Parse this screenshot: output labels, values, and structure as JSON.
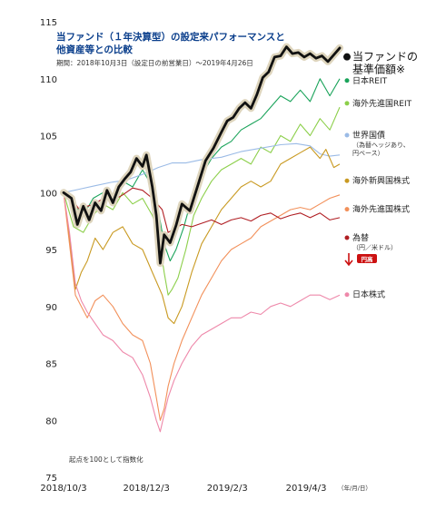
{
  "chart_data": {
    "type": "line",
    "title_lines": [
      "当ファンド（１年決算型）の設定来パフォーマンスと",
      "他資産等との比較"
    ],
    "subtitle": "期間：2018年10月3日（設定日の前営業日）～2019年4月26日",
    "note": "起点を100として指数化",
    "x_unit": "（年/月/日）",
    "x_range": [
      0,
      140
    ],
    "ylim": [
      75,
      115
    ],
    "yticks": [
      75,
      80,
      85,
      90,
      95,
      100,
      105,
      110,
      115
    ],
    "xticks": [
      {
        "x": 0,
        "label": "2018/10/3"
      },
      {
        "x": 42,
        "label": "2018/12/3"
      },
      {
        "x": 83,
        "label": "2019/2/3"
      },
      {
        "x": 123,
        "label": "2019/4/3"
      }
    ],
    "series": [
      {
        "key": "reit_global",
        "legend": "海外先進国REIT",
        "color": "#8ccf4a",
        "points": [
          [
            0,
            100
          ],
          [
            5,
            97
          ],
          [
            10,
            96.5
          ],
          [
            15,
            98
          ],
          [
            20,
            99
          ],
          [
            25,
            98.5
          ],
          [
            30,
            100
          ],
          [
            35,
            99
          ],
          [
            40,
            99.5
          ],
          [
            45,
            98
          ],
          [
            48,
            96.5
          ],
          [
            51,
            93
          ],
          [
            53,
            91
          ],
          [
            55,
            91.5
          ],
          [
            58,
            92.5
          ],
          [
            62,
            95
          ],
          [
            66,
            98
          ],
          [
            70,
            99.5
          ],
          [
            75,
            101
          ],
          [
            80,
            102
          ],
          [
            85,
            102.5
          ],
          [
            90,
            103
          ],
          [
            95,
            102.5
          ],
          [
            100,
            104
          ],
          [
            105,
            103.5
          ],
          [
            110,
            105
          ],
          [
            115,
            104.5
          ],
          [
            120,
            106
          ],
          [
            125,
            105
          ],
          [
            130,
            106.5
          ],
          [
            135,
            105.5
          ],
          [
            140,
            107.5
          ]
        ]
      },
      {
        "key": "reit_japan",
        "legend": "日本REIT",
        "color": "#1aa35a",
        "points": [
          [
            0,
            100
          ],
          [
            5,
            99
          ],
          [
            10,
            98
          ],
          [
            15,
            99.5
          ],
          [
            20,
            100
          ],
          [
            25,
            99.5
          ],
          [
            30,
            101
          ],
          [
            35,
            100.5
          ],
          [
            40,
            102
          ],
          [
            45,
            100.5
          ],
          [
            48,
            98.5
          ],
          [
            51,
            95.5
          ],
          [
            54,
            94
          ],
          [
            57,
            95
          ],
          [
            61,
            97
          ],
          [
            65,
            99.5
          ],
          [
            70,
            101.5
          ],
          [
            75,
            103
          ],
          [
            80,
            104
          ],
          [
            85,
            104.5
          ],
          [
            90,
            105.5
          ],
          [
            95,
            106
          ],
          [
            100,
            106.5
          ],
          [
            105,
            107.5
          ],
          [
            110,
            108.5
          ],
          [
            115,
            108
          ],
          [
            120,
            109
          ],
          [
            125,
            108
          ],
          [
            130,
            110
          ],
          [
            135,
            108.5
          ],
          [
            140,
            110
          ]
        ]
      },
      {
        "key": "bond_global",
        "legend": "世界国債",
        "legend_sub": [
          "（為替ヘッジあり、",
          "円ベース）"
        ],
        "color": "#9bbbe6",
        "points": [
          [
            0,
            100
          ],
          [
            8,
            100.3
          ],
          [
            16,
            100.6
          ],
          [
            24,
            100.9
          ],
          [
            32,
            101.1
          ],
          [
            40,
            101.6
          ],
          [
            48,
            102.2
          ],
          [
            55,
            102.6
          ],
          [
            62,
            102.6
          ],
          [
            70,
            102.9
          ],
          [
            80,
            103.1
          ],
          [
            90,
            103.6
          ],
          [
            100,
            103.9
          ],
          [
            110,
            104.2
          ],
          [
            118,
            104.3
          ],
          [
            125,
            104.1
          ],
          [
            130,
            103.4
          ],
          [
            135,
            103.2
          ],
          [
            140,
            103.3
          ]
        ]
      },
      {
        "key": "equity_em",
        "legend": "海外新興国株式",
        "color": "#c99a22",
        "points": [
          [
            0,
            100
          ],
          [
            3,
            96
          ],
          [
            6,
            91.5
          ],
          [
            9,
            93
          ],
          [
            12,
            94
          ],
          [
            16,
            96
          ],
          [
            20,
            95
          ],
          [
            25,
            96.5
          ],
          [
            30,
            97
          ],
          [
            35,
            95.5
          ],
          [
            40,
            95
          ],
          [
            45,
            93
          ],
          [
            50,
            91
          ],
          [
            53,
            89
          ],
          [
            56,
            88.5
          ],
          [
            60,
            90
          ],
          [
            65,
            93
          ],
          [
            70,
            95.5
          ],
          [
            75,
            97
          ],
          [
            80,
            98.5
          ],
          [
            85,
            99.5
          ],
          [
            90,
            100.5
          ],
          [
            95,
            101
          ],
          [
            100,
            100.5
          ],
          [
            105,
            101
          ],
          [
            110,
            102.5
          ],
          [
            115,
            103
          ],
          [
            120,
            103.5
          ],
          [
            125,
            104
          ],
          [
            130,
            103
          ],
          [
            133,
            103.8
          ],
          [
            137,
            102.2
          ],
          [
            140,
            102.5
          ]
        ]
      },
      {
        "key": "equity_global",
        "legend": "海外先進国株式",
        "color": "#f2905a",
        "points": [
          [
            0,
            100
          ],
          [
            3,
            95.5
          ],
          [
            6,
            91
          ],
          [
            9,
            90
          ],
          [
            12,
            89
          ],
          [
            16,
            90.5
          ],
          [
            20,
            91
          ],
          [
            25,
            90
          ],
          [
            30,
            88.5
          ],
          [
            35,
            87.5
          ],
          [
            40,
            87
          ],
          [
            44,
            85
          ],
          [
            47,
            82
          ],
          [
            49,
            80
          ],
          [
            51,
            81
          ],
          [
            53,
            83
          ],
          [
            56,
            85
          ],
          [
            60,
            87
          ],
          [
            65,
            89
          ],
          [
            70,
            91
          ],
          [
            75,
            92.5
          ],
          [
            80,
            94
          ],
          [
            85,
            95
          ],
          [
            90,
            95.5
          ],
          [
            95,
            96
          ],
          [
            100,
            97
          ],
          [
            105,
            97.5
          ],
          [
            110,
            98
          ],
          [
            115,
            98.5
          ],
          [
            120,
            98.7
          ],
          [
            125,
            98.5
          ],
          [
            130,
            99
          ],
          [
            135,
            99.5
          ],
          [
            140,
            99.8
          ]
        ]
      },
      {
        "key": "fx_usdjpy",
        "legend": "為替",
        "legend_sub": [
          "（円／米ドル）"
        ],
        "color": "#b01e23",
        "points": [
          [
            0,
            100
          ],
          [
            4,
            99.5
          ],
          [
            8,
            98.5
          ],
          [
            12,
            98.8
          ],
          [
            16,
            99
          ],
          [
            20,
            99.5
          ],
          [
            25,
            99.3
          ],
          [
            30,
            99.8
          ],
          [
            35,
            100.4
          ],
          [
            40,
            100.2
          ],
          [
            45,
            99.5
          ],
          [
            50,
            98.5
          ],
          [
            53,
            96.5
          ],
          [
            56,
            96.8
          ],
          [
            60,
            97.2
          ],
          [
            65,
            97
          ],
          [
            70,
            97.3
          ],
          [
            75,
            97.6
          ],
          [
            80,
            97.2
          ],
          [
            85,
            97.6
          ],
          [
            90,
            97.8
          ],
          [
            95,
            97.5
          ],
          [
            100,
            98
          ],
          [
            105,
            98.2
          ],
          [
            110,
            97.7
          ],
          [
            115,
            98
          ],
          [
            120,
            98.2
          ],
          [
            125,
            97.8
          ],
          [
            130,
            98.2
          ],
          [
            135,
            97.6
          ],
          [
            140,
            97.8
          ]
        ]
      },
      {
        "key": "equity_japan",
        "legend": "日本株式",
        "color": "#ee88aa",
        "points": [
          [
            0,
            100
          ],
          [
            3,
            96.5
          ],
          [
            6,
            92
          ],
          [
            9,
            90.5
          ],
          [
            12,
            89.5
          ],
          [
            16,
            88.5
          ],
          [
            20,
            87.5
          ],
          [
            25,
            87
          ],
          [
            30,
            86
          ],
          [
            35,
            85.5
          ],
          [
            40,
            84
          ],
          [
            44,
            82
          ],
          [
            47,
            80
          ],
          [
            49,
            79
          ],
          [
            51,
            80.5
          ],
          [
            53,
            82
          ],
          [
            56,
            83.5
          ],
          [
            60,
            85
          ],
          [
            65,
            86.5
          ],
          [
            70,
            87.5
          ],
          [
            75,
            88
          ],
          [
            80,
            88.5
          ],
          [
            85,
            89
          ],
          [
            90,
            89
          ],
          [
            95,
            89.5
          ],
          [
            100,
            89.3
          ],
          [
            105,
            90
          ],
          [
            110,
            90.3
          ],
          [
            115,
            90
          ],
          [
            120,
            90.5
          ],
          [
            125,
            91
          ],
          [
            130,
            91
          ],
          [
            135,
            90.6
          ],
          [
            140,
            91
          ]
        ]
      },
      {
        "key": "fund",
        "legend": "当ファンドの",
        "legend_sub": [
          "基準価額※"
        ],
        "color": "#111111",
        "halo": "#ded5bd",
        "emphasis": true,
        "points": [
          [
            0,
            100
          ],
          [
            4,
            99.5
          ],
          [
            7,
            97.2
          ],
          [
            10,
            98.8
          ],
          [
            13,
            97.6
          ],
          [
            16,
            99.1
          ],
          [
            19,
            98.4
          ],
          [
            22,
            100.2
          ],
          [
            25,
            99.1
          ],
          [
            28,
            100.5
          ],
          [
            31,
            101.2
          ],
          [
            34,
            101.8
          ],
          [
            37,
            103
          ],
          [
            40,
            102.3
          ],
          [
            42,
            103.3
          ],
          [
            45,
            100.5
          ],
          [
            47,
            98
          ],
          [
            49,
            93.8
          ],
          [
            51,
            96.3
          ],
          [
            54,
            95.6
          ],
          [
            57,
            97.1
          ],
          [
            60,
            99
          ],
          [
            64,
            98.4
          ],
          [
            68,
            100.6
          ],
          [
            72,
            102.8
          ],
          [
            76,
            103.9
          ],
          [
            80,
            105.3
          ],
          [
            83,
            106.3
          ],
          [
            86,
            106.6
          ],
          [
            89,
            107.4
          ],
          [
            92,
            107.9
          ],
          [
            95,
            107.4
          ],
          [
            98,
            108.6
          ],
          [
            101,
            110.1
          ],
          [
            104,
            110.6
          ],
          [
            107,
            111.9
          ],
          [
            110,
            112
          ],
          [
            113,
            112.8
          ],
          [
            116,
            112.2
          ],
          [
            119,
            112.3
          ],
          [
            122,
            111.9
          ],
          [
            125,
            112.2
          ],
          [
            128,
            111.8
          ],
          [
            131,
            112
          ],
          [
            134,
            111.5
          ],
          [
            137,
            112.1
          ],
          [
            140,
            112.7
          ]
        ]
      }
    ],
    "legend_entries": [
      {
        "key": "fund",
        "text": "当ファンドの",
        "sub": [
          "基準価額※"
        ],
        "color": "#111111",
        "ylab": 111.6
      },
      {
        "key": "reit_japan",
        "text": "日本REIT",
        "color": "#1aa35a",
        "ylab": 109.6
      },
      {
        "key": "reit_global",
        "text": "海外先進国REIT",
        "color": "#8ccf4a",
        "ylab": 107.6
      },
      {
        "key": "bond_global",
        "text": "世界国債",
        "sub": [
          "（為替ヘッジあり、",
          "円ベース）"
        ],
        "color": "#9bbbe6",
        "ylab": 104.8
      },
      {
        "key": "equity_em",
        "text": "海外新興国株式",
        "color": "#c99a22",
        "ylab": 100.8
      },
      {
        "key": "equity_global",
        "text": "海外先進国株式",
        "color": "#f2905a",
        "ylab": 98.3
      },
      {
        "key": "fx_usdjpy",
        "text": "為替",
        "sub": [
          "（円／米ドル）"
        ],
        "color": "#b01e23",
        "ylab": 95.8
      },
      {
        "key": "equity_japan",
        "text": "日本株式",
        "color": "#ee88aa",
        "ylab": 90.8
      }
    ],
    "fx_badge": {
      "text": "円高",
      "color": "#cc1111"
    },
    "grid": false,
    "legend_position": "right"
  }
}
